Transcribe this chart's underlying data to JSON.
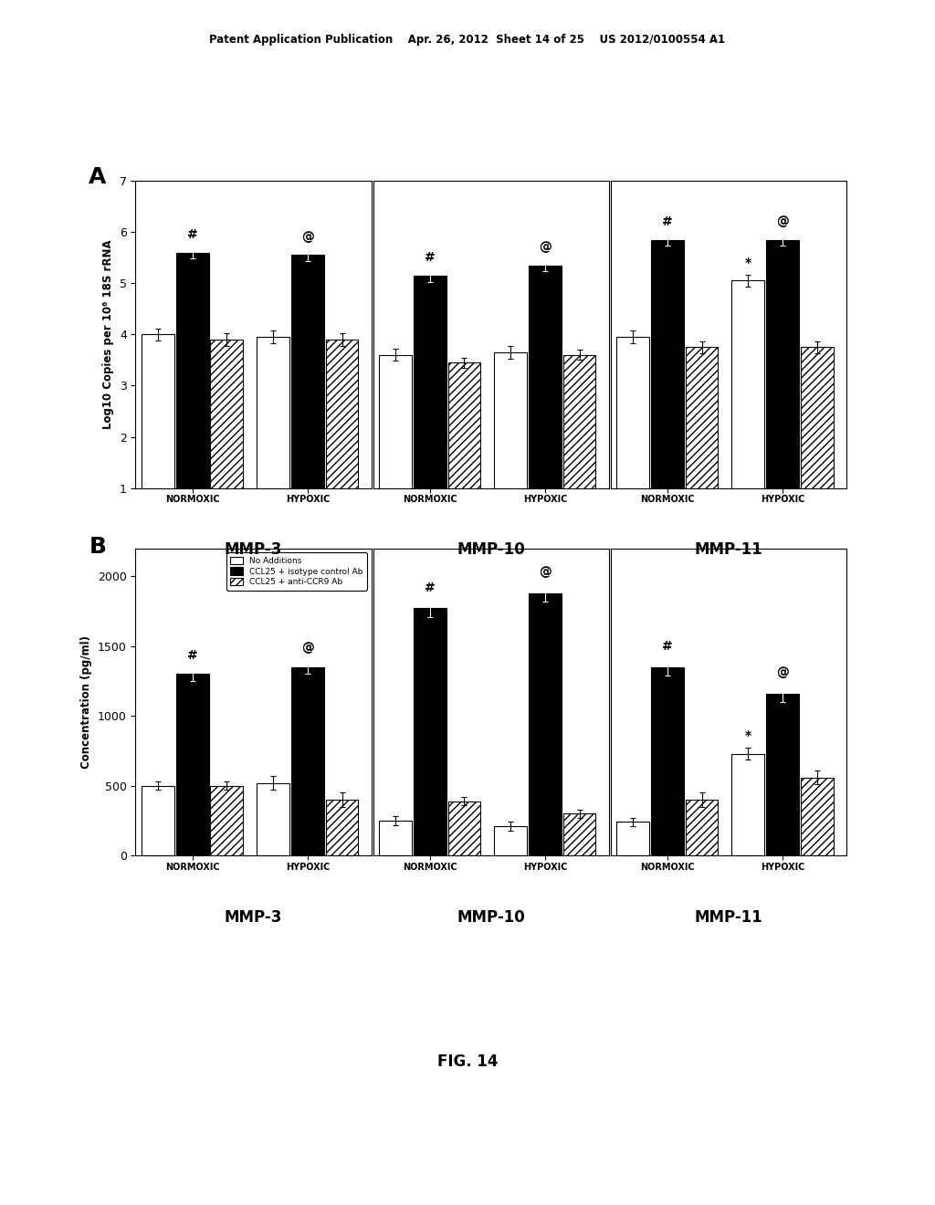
{
  "header_text": "Patent Application Publication    Apr. 26, 2012  Sheet 14 of 25    US 2012/0100554 A1",
  "fig_label": "FIG. 14",
  "panel_A_label": "A",
  "panel_B_label": "B",
  "panel_A_ylabel": "Log10 Copies per 10⁶ 18S rRNA",
  "panel_B_ylabel": "Concentration (pg/ml)",
  "panel_A_ylim": [
    1,
    7
  ],
  "panel_A_yticks": [
    1,
    2,
    3,
    4,
    5,
    6,
    7
  ],
  "panel_B_ylim": [
    0,
    2200
  ],
  "panel_B_yticks": [
    0,
    500,
    1000,
    1500,
    2000
  ],
  "groups": [
    "MMP-3",
    "MMP-10",
    "MMP-11"
  ],
  "conditions": [
    "NORMOXIC",
    "HYPOXIC"
  ],
  "bar_labels": [
    "No Additions",
    "CCL25 + isotype control Ab",
    "CCL25 + anti-CCR9 Ab"
  ],
  "panel_A_data": {
    "MMP-3": {
      "NORMOXIC": {
        "no_add": 4.0,
        "ccl25_iso": 5.6,
        "ccl25_anti": 3.9,
        "no_add_err": 0.12,
        "ccl25_iso_err": 0.12,
        "ccl25_anti_err": 0.12
      },
      "HYPOXIC": {
        "no_add": 3.95,
        "ccl25_iso": 5.55,
        "ccl25_anti": 3.9,
        "no_add_err": 0.12,
        "ccl25_iso_err": 0.12,
        "ccl25_anti_err": 0.12
      }
    },
    "MMP-10": {
      "NORMOXIC": {
        "no_add": 3.6,
        "ccl25_iso": 5.15,
        "ccl25_anti": 3.45,
        "no_add_err": 0.12,
        "ccl25_iso_err": 0.12,
        "ccl25_anti_err": 0.1
      },
      "HYPOXIC": {
        "no_add": 3.65,
        "ccl25_iso": 5.35,
        "ccl25_anti": 3.6,
        "no_add_err": 0.12,
        "ccl25_iso_err": 0.12,
        "ccl25_anti_err": 0.1
      }
    },
    "MMP-11": {
      "NORMOXIC": {
        "no_add": 3.95,
        "ccl25_iso": 5.85,
        "ccl25_anti": 3.75,
        "no_add_err": 0.12,
        "ccl25_iso_err": 0.12,
        "ccl25_anti_err": 0.12
      },
      "HYPOXIC": {
        "no_add": 5.05,
        "ccl25_iso": 5.85,
        "ccl25_anti": 3.75,
        "no_add_err": 0.12,
        "ccl25_iso_err": 0.12,
        "ccl25_anti_err": 0.12
      }
    }
  },
  "panel_B_data": {
    "MMP-3": {
      "NORMOXIC": {
        "no_add": 500,
        "ccl25_iso": 1300,
        "ccl25_anti": 500,
        "no_add_err": 30,
        "ccl25_iso_err": 50,
        "ccl25_anti_err": 30
      },
      "HYPOXIC": {
        "no_add": 520,
        "ccl25_iso": 1350,
        "ccl25_anti": 400,
        "no_add_err": 50,
        "ccl25_iso_err": 50,
        "ccl25_anti_err": 50
      }
    },
    "MMP-10": {
      "NORMOXIC": {
        "no_add": 250,
        "ccl25_iso": 1770,
        "ccl25_anti": 390,
        "no_add_err": 30,
        "ccl25_iso_err": 60,
        "ccl25_anti_err": 30
      },
      "HYPOXIC": {
        "no_add": 210,
        "ccl25_iso": 1880,
        "ccl25_anti": 300,
        "no_add_err": 30,
        "ccl25_iso_err": 60,
        "ccl25_anti_err": 30
      }
    },
    "MMP-11": {
      "NORMOXIC": {
        "no_add": 240,
        "ccl25_iso": 1350,
        "ccl25_anti": 400,
        "no_add_err": 30,
        "ccl25_iso_err": 60,
        "ccl25_anti_err": 50
      },
      "HYPOXIC": {
        "no_add": 730,
        "ccl25_iso": 1160,
        "ccl25_anti": 560,
        "no_add_err": 40,
        "ccl25_iso_err": 60,
        "ccl25_anti_err": 50
      }
    }
  },
  "panel_A_annotations": {
    "MMP-3_NORMOXIC_ccl25_iso": "#",
    "MMP-3_HYPOXIC_ccl25_iso": "@",
    "MMP-10_NORMOXIC_ccl25_iso": "#",
    "MMP-10_HYPOXIC_ccl25_iso": "@",
    "MMP-11_NORMOXIC_ccl25_iso": "#",
    "MMP-11_HYPOXIC_no_add": "*",
    "MMP-11_HYPOXIC_ccl25_iso": "@"
  },
  "panel_B_annotations": {
    "MMP-3_NORMOXIC_ccl25_iso": "#",
    "MMP-3_HYPOXIC_ccl25_iso": "@",
    "MMP-10_NORMOXIC_ccl25_iso": "#",
    "MMP-10_HYPOXIC_ccl25_iso": "@",
    "MMP-11_NORMOXIC_ccl25_iso": "#",
    "MMP-11_HYPOXIC_no_add": "*",
    "MMP-11_HYPOXIC_ccl25_iso": "@"
  },
  "background_color": "white",
  "hatch_pattern": "////"
}
